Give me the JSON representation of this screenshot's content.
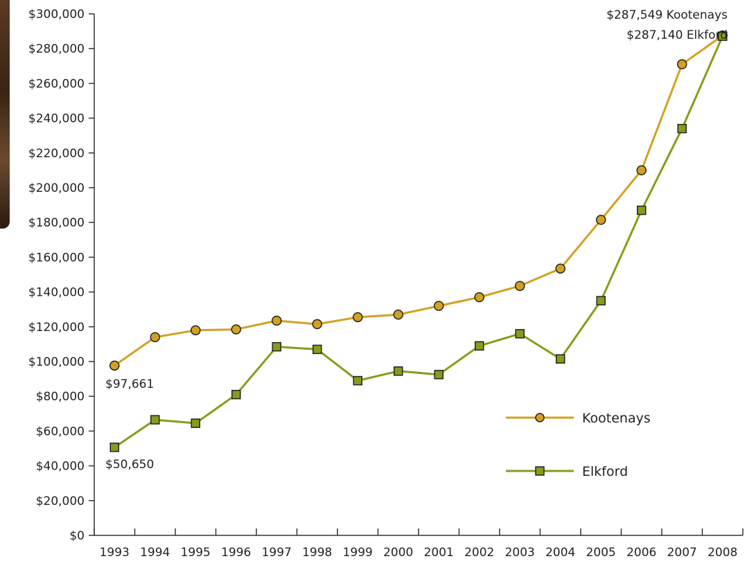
{
  "chart_data": {
    "type": "line",
    "x": [
      "1993",
      "1994",
      "1995",
      "1996",
      "1997",
      "1998",
      "1999",
      "2000",
      "2001",
      "2002",
      "2003",
      "2004",
      "2005",
      "2006",
      "2007",
      "2008"
    ],
    "series": [
      {
        "name": "Kootenays",
        "color": "#d4a020",
        "marker": "circle",
        "values": [
          97661,
          114000,
          118000,
          118500,
          123500,
          121500,
          125500,
          127000,
          132000,
          137000,
          143500,
          153500,
          181500,
          210000,
          271000,
          287549
        ]
      },
      {
        "name": "Elkford",
        "color": "#8a9a1a",
        "marker": "square",
        "values": [
          50650,
          66500,
          64500,
          81000,
          108500,
          107000,
          89000,
          94500,
          92500,
          109000,
          116000,
          101500,
          135000,
          187000,
          234000,
          287140
        ]
      }
    ],
    "ylim": [
      0,
      300000
    ],
    "y_ticks": [
      "$0",
      "$20,000",
      "$40,000",
      "$60,000",
      "$80,000",
      "$100,000",
      "$120,000",
      "$140,000",
      "$160,000",
      "$180,000",
      "$200,000",
      "$220,000",
      "$240,000",
      "$260,000",
      "$280,000",
      "$300,000"
    ],
    "annotations": {
      "kootenays_start": "$97,661",
      "elkford_start": "$50,650",
      "kootenays_end": "$287,549 Kootenays",
      "elkford_end": "$287,140 Elkford"
    },
    "legend": {
      "placement": "lower-right",
      "items": [
        "Kootenays",
        "Elkford"
      ]
    },
    "grid": false
  }
}
